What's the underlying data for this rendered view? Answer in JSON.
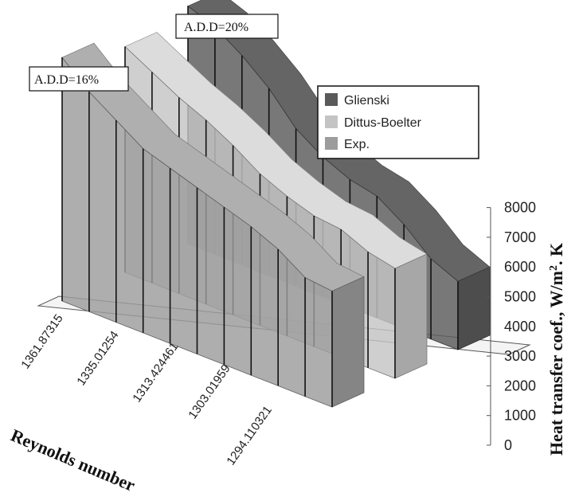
{
  "chart_data": {
    "type": "area",
    "subtype": "3d-area",
    "title": "",
    "xlabel": "Reynolds number",
    "ylabel": "Heat transfer coef., W/m². K",
    "ylabel_parts": {
      "main": "Heat transfer coef., W/m",
      "sup": "2",
      "tail": ". K"
    },
    "ylim": [
      0,
      8000
    ],
    "yticks": [
      0,
      1000,
      2000,
      3000,
      4000,
      5000,
      6000,
      7000,
      8000
    ],
    "x_tick_labels": [
      "1361.87315",
      "1335.01254",
      "1313.424461",
      "1303.01959",
      "1294.110321"
    ],
    "points_per_series": 11,
    "legend_position": "top-right",
    "series": [
      {
        "name": "Exp.",
        "color": "#9c9c9c",
        "values": [
          8200,
          7400,
          6800,
          6200,
          5900,
          5600,
          5300,
          5000,
          4600,
          4000,
          3900
        ]
      },
      {
        "name": "Dittus-Boelter",
        "color": "#c4c4c4",
        "values": [
          7600,
          7100,
          6600,
          6200,
          5700,
          5100,
          4700,
          4400,
          4300,
          3900,
          3700
        ]
      },
      {
        "name": "Glienski",
        "color": "#5a5a5a",
        "values": [
          8000,
          7650,
          7050,
          6300,
          5300,
          4700,
          4300,
          4100,
          3500,
          2700,
          2300
        ]
      }
    ],
    "annotations": [
      "A.D.D=16%",
      "A.D.D=20%"
    ]
  },
  "legend": {
    "items": [
      {
        "label": "Glienski",
        "color": "#5a5a5a"
      },
      {
        "label": "Dittus-Boelter",
        "color": "#c4c4c4"
      },
      {
        "label": "Exp.",
        "color": "#9c9c9c"
      }
    ]
  }
}
